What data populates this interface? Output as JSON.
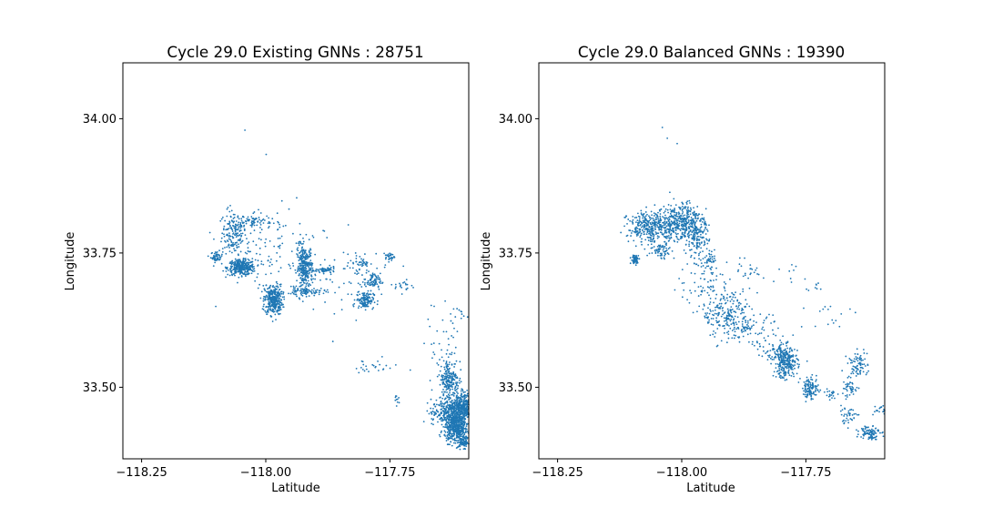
{
  "chart_data": [
    {
      "type": "scatter",
      "title": "Cycle 29.0 Existing GNNs : 28751",
      "xlabel": "Latitude",
      "ylabel": "Longitude",
      "xlim": [
        -118.3,
        -117.6
      ],
      "ylim": [
        33.37,
        34.105
      ],
      "xticks": [
        "−118.25",
        "−118.00",
        "−117.75"
      ],
      "xtick_values": [
        -118.25,
        -118.0,
        -117.75
      ],
      "yticks": [
        "33.50",
        "33.75",
        "34.00"
      ],
      "ytick_values": [
        33.5,
        33.75,
        34.0
      ],
      "grid": false,
      "marker_color": "#1f77b4",
      "clusters": [
        {
          "x": -118.053,
          "y": 33.98,
          "n": 1,
          "sx": 0,
          "sy": 0
        },
        {
          "x": -118.01,
          "y": 33.935,
          "n": 1,
          "sx": 0,
          "sy": 0
        },
        {
          "x": -118.075,
          "y": 33.79,
          "n": 160,
          "sx": 0.012,
          "sy": 0.02
        },
        {
          "x": -118.035,
          "y": 33.81,
          "n": 70,
          "sx": 0.018,
          "sy": 0.007
        },
        {
          "x": -118.11,
          "y": 33.745,
          "n": 50,
          "sx": 0.006,
          "sy": 0.005
        },
        {
          "x": -118.06,
          "y": 33.725,
          "n": 340,
          "sx": 0.014,
          "sy": 0.007
        },
        {
          "x": -117.995,
          "y": 33.665,
          "n": 340,
          "sx": 0.009,
          "sy": 0.014
        },
        {
          "x": -117.932,
          "y": 33.725,
          "n": 300,
          "sx": 0.008,
          "sy": 0.02
        },
        {
          "x": -117.89,
          "y": 33.72,
          "n": 60,
          "sx": 0.01,
          "sy": 0.003
        },
        {
          "x": -117.93,
          "y": 33.68,
          "n": 80,
          "sx": 0.02,
          "sy": 0.004
        },
        {
          "x": -117.81,
          "y": 33.665,
          "n": 130,
          "sx": 0.009,
          "sy": 0.008
        },
        {
          "x": -117.795,
          "y": 33.7,
          "n": 70,
          "sx": 0.008,
          "sy": 0.007
        },
        {
          "x": -117.82,
          "y": 33.735,
          "n": 40,
          "sx": 0.01,
          "sy": 0.008
        },
        {
          "x": -117.76,
          "y": 33.745,
          "n": 30,
          "sx": 0.005,
          "sy": 0.004
        },
        {
          "x": -117.73,
          "y": 33.69,
          "n": 20,
          "sx": 0.01,
          "sy": 0.006
        },
        {
          "x": -117.65,
          "y": 33.6,
          "n": 40,
          "sx": 0.025,
          "sy": 0.05
        },
        {
          "x": -117.64,
          "y": 33.515,
          "n": 220,
          "sx": 0.01,
          "sy": 0.02
        },
        {
          "x": -117.635,
          "y": 33.455,
          "n": 400,
          "sx": 0.02,
          "sy": 0.012
        },
        {
          "x": -117.61,
          "y": 33.47,
          "n": 300,
          "sx": 0.01,
          "sy": 0.012
        },
        {
          "x": -117.625,
          "y": 33.425,
          "n": 420,
          "sx": 0.012,
          "sy": 0.012
        },
        {
          "x": -117.61,
          "y": 33.4,
          "n": 80,
          "sx": 0.006,
          "sy": 0.005
        },
        {
          "x": -117.8,
          "y": 33.54,
          "n": 25,
          "sx": 0.03,
          "sy": 0.007
        },
        {
          "x": -117.745,
          "y": 33.48,
          "n": 10,
          "sx": 0.004,
          "sy": 0.005
        },
        {
          "x": -117.6,
          "y": 33.64,
          "n": 20,
          "sx": 0.015,
          "sy": 0.01
        },
        {
          "x": -118.0,
          "y": 33.76,
          "n": 120,
          "sx": 0.05,
          "sy": 0.04
        },
        {
          "x": -117.85,
          "y": 33.7,
          "n": 60,
          "sx": 0.06,
          "sy": 0.04
        }
      ]
    },
    {
      "type": "scatter",
      "title": "Cycle 29.0 Balanced GNNs : 19390",
      "xlabel": "Latitude",
      "ylabel": "Longitude",
      "xlim": [
        -118.3,
        -117.6
      ],
      "ylim": [
        33.37,
        34.105
      ],
      "xticks": [
        "−118.25",
        "−118.00",
        "−117.75"
      ],
      "xtick_values": [
        -118.25,
        -118.0,
        -117.75
      ],
      "yticks": [
        "33.50",
        "33.75",
        "34.00"
      ],
      "ytick_values": [
        33.5,
        33.75,
        34.0
      ],
      "grid": false,
      "marker_color": "#1f77b4",
      "clusters": [
        {
          "x": -118.05,
          "y": 33.985,
          "n": 1,
          "sx": 0,
          "sy": 0
        },
        {
          "x": -118.04,
          "y": 33.965,
          "n": 1,
          "sx": 0,
          "sy": 0
        },
        {
          "x": -118.02,
          "y": 33.955,
          "n": 1,
          "sx": 0,
          "sy": 0
        },
        {
          "x": -118.07,
          "y": 33.8,
          "n": 380,
          "sx": 0.025,
          "sy": 0.015
        },
        {
          "x": -118.01,
          "y": 33.81,
          "n": 340,
          "sx": 0.02,
          "sy": 0.018
        },
        {
          "x": -117.98,
          "y": 33.78,
          "n": 150,
          "sx": 0.012,
          "sy": 0.02
        },
        {
          "x": -118.105,
          "y": 33.74,
          "n": 60,
          "sx": 0.004,
          "sy": 0.004
        },
        {
          "x": -118.05,
          "y": 33.755,
          "n": 60,
          "sx": 0.012,
          "sy": 0.007
        },
        {
          "x": -117.955,
          "y": 33.74,
          "n": 40,
          "sx": 0.008,
          "sy": 0.01
        },
        {
          "x": -117.96,
          "y": 33.7,
          "n": 60,
          "sx": 0.03,
          "sy": 0.02
        },
        {
          "x": -117.92,
          "y": 33.64,
          "n": 220,
          "sx": 0.025,
          "sy": 0.022
        },
        {
          "x": -117.875,
          "y": 33.61,
          "n": 90,
          "sx": 0.03,
          "sy": 0.015
        },
        {
          "x": -117.8,
          "y": 33.55,
          "n": 280,
          "sx": 0.012,
          "sy": 0.015
        },
        {
          "x": -117.75,
          "y": 33.5,
          "n": 110,
          "sx": 0.008,
          "sy": 0.01
        },
        {
          "x": -117.825,
          "y": 33.57,
          "n": 40,
          "sx": 0.015,
          "sy": 0.008
        },
        {
          "x": -117.67,
          "y": 33.5,
          "n": 40,
          "sx": 0.01,
          "sy": 0.008
        },
        {
          "x": -117.655,
          "y": 33.545,
          "n": 80,
          "sx": 0.01,
          "sy": 0.012
        },
        {
          "x": -117.675,
          "y": 33.45,
          "n": 40,
          "sx": 0.012,
          "sy": 0.008
        },
        {
          "x": -117.63,
          "y": 33.42,
          "n": 90,
          "sx": 0.01,
          "sy": 0.007
        },
        {
          "x": -117.61,
          "y": 33.46,
          "n": 20,
          "sx": 0.01,
          "sy": 0.006
        },
        {
          "x": -117.71,
          "y": 33.49,
          "n": 20,
          "sx": 0.006,
          "sy": 0.006
        },
        {
          "x": -117.72,
          "y": 33.63,
          "n": 15,
          "sx": 0.03,
          "sy": 0.02
        },
        {
          "x": -117.88,
          "y": 33.72,
          "n": 20,
          "sx": 0.02,
          "sy": 0.01
        },
        {
          "x": -117.8,
          "y": 33.715,
          "n": 10,
          "sx": 0.03,
          "sy": 0.01
        },
        {
          "x": -117.74,
          "y": 33.69,
          "n": 8,
          "sx": 0.01,
          "sy": 0.005
        }
      ]
    }
  ]
}
